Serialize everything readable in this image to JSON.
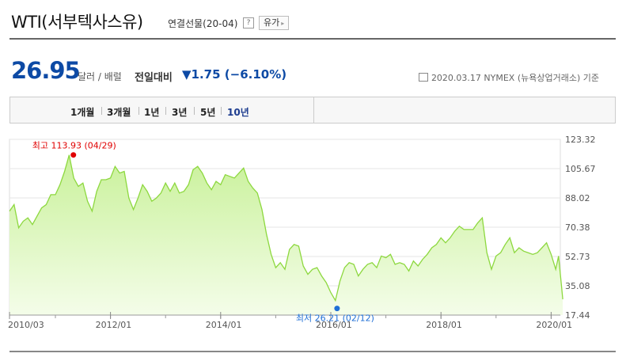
{
  "header": {
    "title": "WTI(서부텍사스유)",
    "subtitle": "연결선물(20-04)",
    "help": "?",
    "related_button": "유가",
    "related_chevron": "▸"
  },
  "quote": {
    "price": "26.95",
    "unit": "달러 / 배럴",
    "change_label": "전일대비",
    "change_value": "▼1.75 (−6.10%)",
    "meta": "2020.03.17  NYMEX (뉴욕상업거래소) 기준"
  },
  "tabs": [
    "1개월",
    "3개월",
    "1년",
    "3년",
    "5년",
    "10년"
  ],
  "active_tab": "10년",
  "colors": {
    "line": "#8dd83f",
    "fill_top": "#c9f19a",
    "fill_bottom": "#f4fde9",
    "up": "#e00000",
    "down": "#1f6fd6"
  },
  "chart_data": {
    "type": "area",
    "x_tick_labels": [
      "2010/03",
      "2012/01",
      "2014/01",
      "2016/01",
      "2018/01",
      "2020/01"
    ],
    "y_tick_labels": [
      "123.32",
      "105.67",
      "88.02",
      "70.38",
      "52.73",
      "35.08",
      "17.44"
    ],
    "ylim": [
      17.44,
      123.32
    ],
    "xlim": [
      "2010-03",
      "2020-03"
    ],
    "annotations": {
      "high": {
        "label": "최고  113.93 (04/29)",
        "date": "2011-04-29",
        "value": 113.93
      },
      "low": {
        "label": "최저  26.21 (02/12)",
        "date": "2016-02-12",
        "value": 26.21
      }
    },
    "series": [
      {
        "points": [
          [
            "2010-03",
            80
          ],
          [
            "2010-04",
            84
          ],
          [
            "2010-05",
            70
          ],
          [
            "2010-06",
            74
          ],
          [
            "2010-07",
            76
          ],
          [
            "2010-08",
            72
          ],
          [
            "2010-09",
            77
          ],
          [
            "2010-10",
            82
          ],
          [
            "2010-11",
            84
          ],
          [
            "2010-12",
            90
          ],
          [
            "2011-01",
            90
          ],
          [
            "2011-02",
            96
          ],
          [
            "2011-03",
            104
          ],
          [
            "2011-04",
            113.93
          ],
          [
            "2011-05",
            100
          ],
          [
            "2011-06",
            95
          ],
          [
            "2011-07",
            97
          ],
          [
            "2011-08",
            86
          ],
          [
            "2011-09",
            80
          ],
          [
            "2011-10",
            92
          ],
          [
            "2011-11",
            99
          ],
          [
            "2011-12",
            99
          ],
          [
            "2012-01",
            100
          ],
          [
            "2012-02",
            107
          ],
          [
            "2012-03",
            103
          ],
          [
            "2012-04",
            104
          ],
          [
            "2012-05",
            88
          ],
          [
            "2012-06",
            81
          ],
          [
            "2012-07",
            88
          ],
          [
            "2012-08",
            96
          ],
          [
            "2012-09",
            92
          ],
          [
            "2012-10",
            86
          ],
          [
            "2012-11",
            88
          ],
          [
            "2012-12",
            91
          ],
          [
            "2013-01",
            97
          ],
          [
            "2013-02",
            92
          ],
          [
            "2013-03",
            97
          ],
          [
            "2013-04",
            91
          ],
          [
            "2013-05",
            92
          ],
          [
            "2013-06",
            96
          ],
          [
            "2013-07",
            105
          ],
          [
            "2013-08",
            107
          ],
          [
            "2013-09",
            103
          ],
          [
            "2013-10",
            97
          ],
          [
            "2013-11",
            93
          ],
          [
            "2013-12",
            98
          ],
          [
            "2014-01",
            96
          ],
          [
            "2014-02",
            102
          ],
          [
            "2014-03",
            101
          ],
          [
            "2014-04",
            100
          ],
          [
            "2014-05",
            103
          ],
          [
            "2014-06",
            106
          ],
          [
            "2014-07",
            98
          ],
          [
            "2014-08",
            94
          ],
          [
            "2014-09",
            91
          ],
          [
            "2014-10",
            81
          ],
          [
            "2014-11",
            66
          ],
          [
            "2014-12",
            54
          ],
          [
            "2015-01",
            46
          ],
          [
            "2015-02",
            49
          ],
          [
            "2015-03",
            45
          ],
          [
            "2015-04",
            57
          ],
          [
            "2015-05",
            60
          ],
          [
            "2015-06",
            59
          ],
          [
            "2015-07",
            47
          ],
          [
            "2015-08",
            42
          ],
          [
            "2015-09",
            45
          ],
          [
            "2015-10",
            46
          ],
          [
            "2015-11",
            41
          ],
          [
            "2015-12",
            37
          ],
          [
            "2016-01",
            31
          ],
          [
            "2016-02",
            26.21
          ],
          [
            "2016-03",
            38
          ],
          [
            "2016-04",
            46
          ],
          [
            "2016-05",
            49
          ],
          [
            "2016-06",
            48
          ],
          [
            "2016-07",
            41
          ],
          [
            "2016-08",
            45
          ],
          [
            "2016-09",
            48
          ],
          [
            "2016-10",
            49
          ],
          [
            "2016-11",
            46
          ],
          [
            "2016-12",
            53
          ],
          [
            "2017-01",
            52
          ],
          [
            "2017-02",
            54
          ],
          [
            "2017-03",
            48
          ],
          [
            "2017-04",
            49
          ],
          [
            "2017-05",
            48
          ],
          [
            "2017-06",
            44
          ],
          [
            "2017-07",
            50
          ],
          [
            "2017-08",
            47
          ],
          [
            "2017-09",
            51
          ],
          [
            "2017-10",
            54
          ],
          [
            "2017-11",
            58
          ],
          [
            "2017-12",
            60
          ],
          [
            "2018-01",
            64
          ],
          [
            "2018-02",
            61
          ],
          [
            "2018-03",
            64
          ],
          [
            "2018-04",
            68
          ],
          [
            "2018-05",
            71
          ],
          [
            "2018-06",
            69
          ],
          [
            "2018-07",
            69
          ],
          [
            "2018-08",
            69
          ],
          [
            "2018-09",
            73
          ],
          [
            "2018-10",
            76
          ],
          [
            "2018-11",
            55
          ],
          [
            "2018-12",
            45
          ],
          [
            "2019-01",
            53
          ],
          [
            "2019-02",
            55
          ],
          [
            "2019-03",
            60
          ],
          [
            "2019-04",
            64
          ],
          [
            "2019-05",
            55
          ],
          [
            "2019-06",
            58
          ],
          [
            "2019-07",
            56
          ],
          [
            "2019-08",
            55
          ],
          [
            "2019-09",
            54
          ],
          [
            "2019-10",
            55
          ],
          [
            "2019-11",
            58
          ],
          [
            "2019-12",
            61
          ],
          [
            "2020-01",
            54
          ],
          [
            "2020-02",
            45
          ],
          [
            "2020-02-20",
            53
          ],
          [
            "2020-03-10",
            34
          ],
          [
            "2020-03-17",
            26.95
          ]
        ]
      }
    ]
  }
}
